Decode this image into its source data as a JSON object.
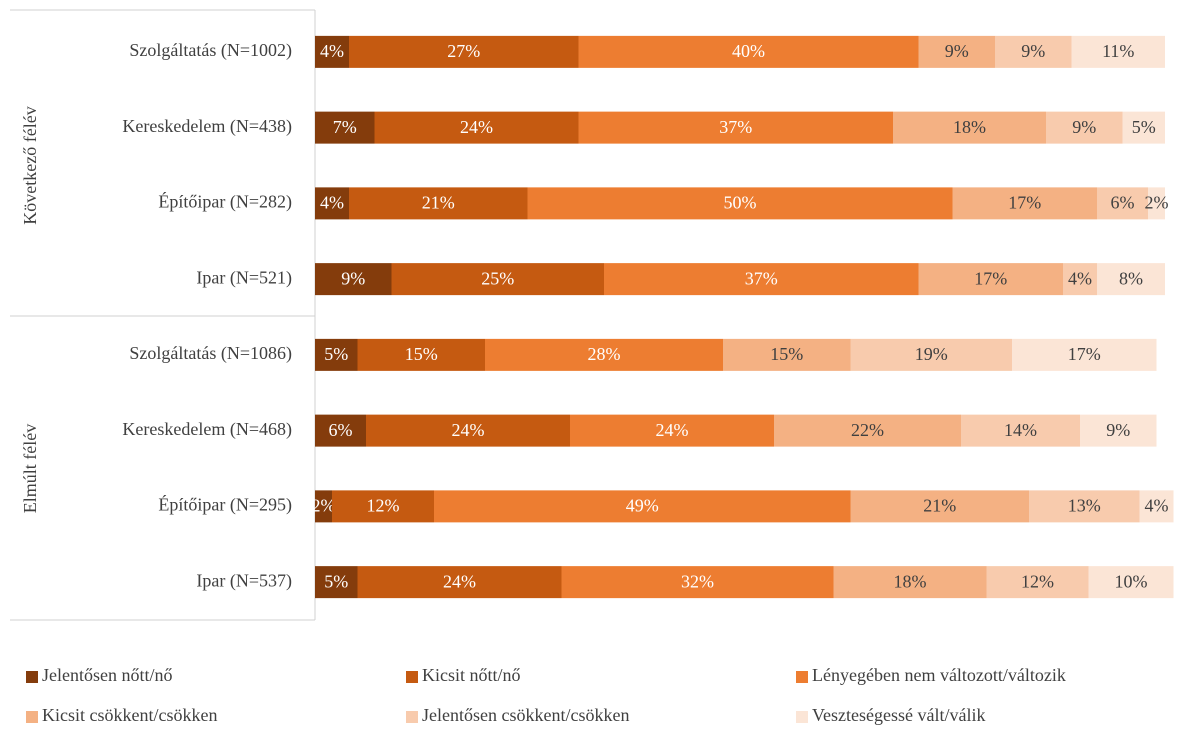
{
  "chart_data": {
    "type": "stacked_bar_horizontal",
    "categories": [
      "Szolgáltatás (N=1002)",
      "Kereskedelem (N=438)",
      "Építőipar (N=282)",
      "Ipar (N=521)",
      "Szolgáltatás (N=1086)",
      "Kereskedelem (N=468)",
      "Építőipar (N=295)",
      "Ipar (N=537)"
    ],
    "group_labels": [
      "Következő félév",
      "Elmúlt félév"
    ],
    "xlim": [
      0,
      100
    ],
    "series": [
      {
        "name": "Jelentősen nőtt/nő",
        "color": "#843c0c",
        "values": [
          4,
          7,
          4,
          9,
          5,
          6,
          2,
          5
        ],
        "value_labels": [
          "4%",
          "7%",
          "4%",
          "9%",
          "5%",
          "6%",
          "2%",
          "5%"
        ]
      },
      {
        "name": "Kicsit nőtt/nő",
        "color": "#c55a11",
        "values": [
          27,
          24,
          21,
          25,
          15,
          24,
          12,
          24
        ],
        "value_labels": [
          "27%",
          "24%",
          "21%",
          "25%",
          "15%",
          "24%",
          "12%",
          "24%"
        ]
      },
      {
        "name": "Lényegében nem változott/változik",
        "color": "#ed7d31",
        "values": [
          40,
          37,
          50,
          37,
          28,
          24,
          49,
          32
        ],
        "value_labels": [
          "40%",
          "37%",
          "50%",
          "37%",
          "28%",
          "24%",
          "49%",
          "32%"
        ]
      },
      {
        "name": "Kicsit csökkent/csökken",
        "color": "#f4b183",
        "values": [
          9,
          18,
          17,
          17,
          15,
          22,
          21,
          18
        ],
        "value_labels": [
          "9%",
          "18%",
          "17%",
          "17%",
          "15%",
          "22%",
          "21%",
          "18%"
        ]
      },
      {
        "name": "Jelentősen csökkent/csökken",
        "color": "#f8cbad",
        "values": [
          9,
          9,
          6,
          4,
          19,
          14,
          13,
          12
        ],
        "value_labels": [
          "9%",
          "9%",
          "6%",
          "4%",
          "19%",
          "14%",
          "13%",
          "12%"
        ]
      },
      {
        "name": "Veszteségessé vált/válik",
        "color": "#fbe5d6",
        "values": [
          11,
          5,
          2,
          8,
          17,
          9,
          4,
          10
        ],
        "value_labels": [
          "11%",
          "5%",
          "2%",
          "8%",
          "17%",
          "9%",
          "4%",
          "10%"
        ]
      }
    ]
  }
}
